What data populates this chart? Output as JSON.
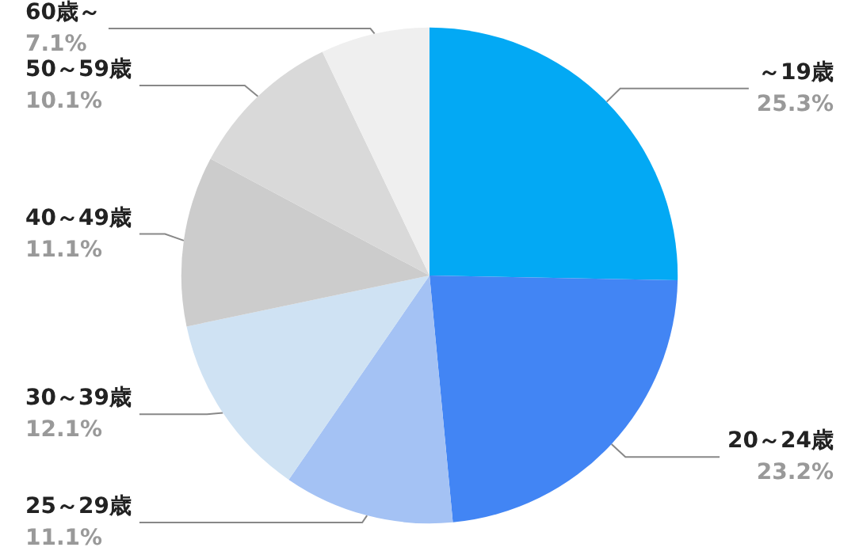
{
  "chart_data": {
    "type": "pie",
    "categories": [
      "～19歳",
      "20～24歳",
      "25～29歳",
      "30～39歳",
      "40～49歳",
      "50～59歳",
      "60歳～"
    ],
    "values": [
      25.3,
      23.2,
      11.1,
      12.1,
      11.1,
      10.1,
      7.1
    ],
    "value_labels": [
      "25.3%",
      "23.2%",
      "11.1%",
      "12.1%",
      "11.1%",
      "10.1%",
      "7.1%"
    ],
    "colors": [
      "#03a9f4",
      "#4285f4",
      "#a4c2f4",
      "#cfe2f3",
      "#cccccc",
      "#d9d9d9",
      "#efefef"
    ],
    "legend": false
  }
}
